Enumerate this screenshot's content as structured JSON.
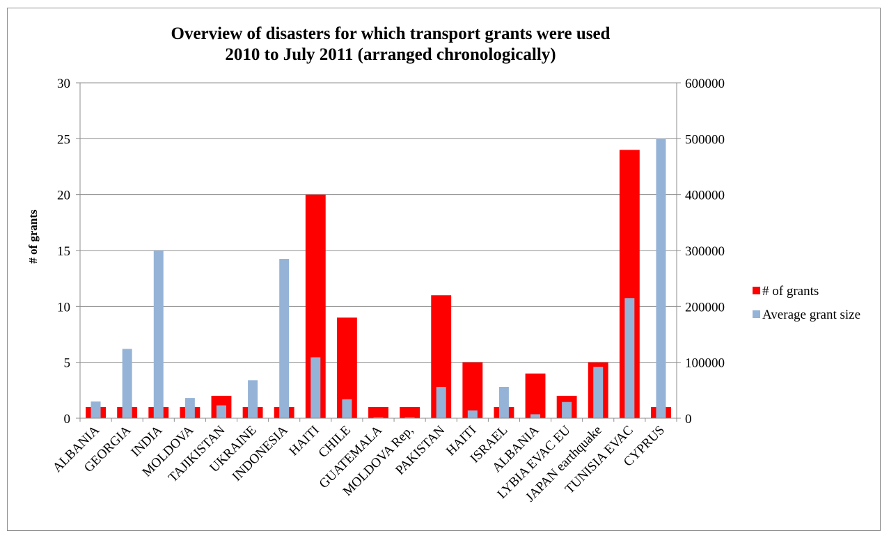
{
  "chart_data": {
    "type": "bar",
    "title_lines": [
      "Overview of disasters for which transport grants were used",
      "2010 to July 2011 (arranged chronologically)"
    ],
    "ylabel": "# of grants",
    "y2label": "",
    "categories": [
      "ALBANIA",
      "GEORGIA",
      "INDIA",
      "MOLDOVA",
      "TAJIKISTAN",
      "UKRAINE",
      "INDONESIA",
      "HAITI",
      "CHILE",
      "GUATEMALA",
      "MOLDOVA Rep,",
      "PAKISTAN",
      "HAITI",
      "ISRAEL",
      "ALBANIA",
      "LYBIA EVAC EU",
      "JAPAN earthquake",
      "TUNISIA EVAC",
      "CYPRUS"
    ],
    "series": [
      {
        "name": "# of grants",
        "axis": "left",
        "color": "#ff0000",
        "values": [
          1,
          1,
          1,
          1,
          2,
          1,
          1,
          20,
          9,
          1,
          1,
          11,
          5,
          1,
          4,
          2,
          5,
          24,
          1
        ]
      },
      {
        "name": "Average grant size",
        "axis": "right",
        "color": "#95b3d7",
        "values": [
          30000,
          124000,
          300000,
          36000,
          23000,
          68000,
          285000,
          109000,
          34000,
          1500,
          1500,
          56000,
          14000,
          56000,
          7000,
          29000,
          92000,
          215000,
          500000
        ]
      }
    ],
    "ylim": [
      0,
      30
    ],
    "y2lim": [
      0,
      600000
    ],
    "yticks": [
      "0",
      "5",
      "10",
      "15",
      "20",
      "25",
      "30"
    ],
    "y2ticks": [
      "0",
      "100000",
      "200000",
      "300000",
      "400000",
      "500000",
      "600000"
    ],
    "grid": true,
    "legend": "right"
  }
}
